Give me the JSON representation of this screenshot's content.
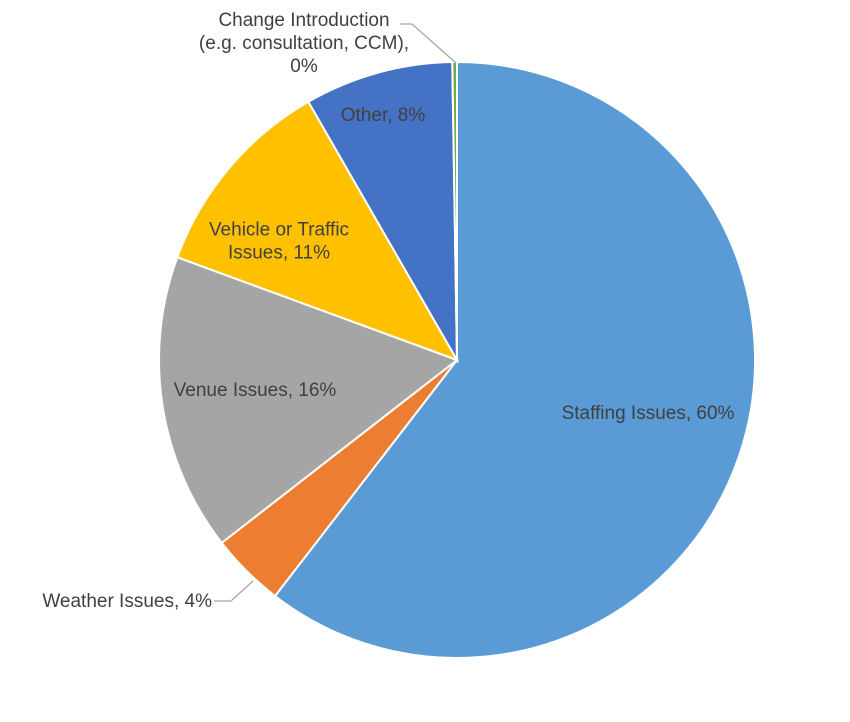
{
  "chart_data": {
    "type": "pie",
    "title": "",
    "start_angle_deg": 0,
    "direction": "clockwise",
    "legend": "none",
    "slices": [
      {
        "label": "Staffing Issues, 60%",
        "value": 60,
        "color": "#5b9bd5"
      },
      {
        "label": "Weather Issues, 4%",
        "value": 4,
        "color": "#ed7d31"
      },
      {
        "label": "Venue Issues, 16%",
        "value": 16,
        "color": "#a5a5a5"
      },
      {
        "label": "Vehicle or Traffic Issues, 11%",
        "value": 11,
        "color": "#ffc000"
      },
      {
        "label": "Other, 8%",
        "value": 8,
        "color": "#4472c4"
      },
      {
        "label": "Change Introduction (e.g. consultation, CCM), 0%",
        "value": 0.25,
        "color": "#70ad47"
      }
    ]
  }
}
